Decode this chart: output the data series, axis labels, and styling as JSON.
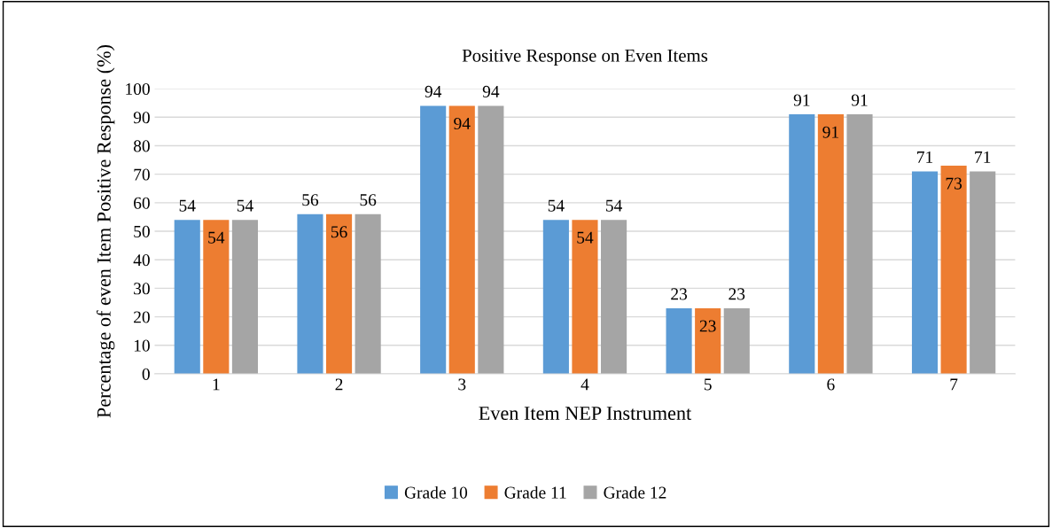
{
  "chart_data": {
    "type": "bar",
    "title": "Positive Response on Even Items",
    "xlabel": "Even Item NEP Instrument",
    "ylabel": "Percentage of even Item Positive Response (%)",
    "categories": [
      "1",
      "2",
      "3",
      "4",
      "5",
      "6",
      "7"
    ],
    "series": [
      {
        "name": "Grade 10",
        "color": "#5b9bd5",
        "values": [
          54,
          56,
          94,
          54,
          23,
          91,
          71
        ]
      },
      {
        "name": "Grade 11",
        "color": "#ed7d31",
        "values": [
          54,
          56,
          94,
          54,
          23,
          91,
          73
        ]
      },
      {
        "name": "Grade 12",
        "color": "#a5a5a5",
        "values": [
          54,
          56,
          94,
          54,
          23,
          91,
          71
        ]
      }
    ],
    "ylim": [
      0,
      100
    ],
    "yticks": [
      0,
      10,
      20,
      30,
      40,
      50,
      60,
      70,
      80,
      90,
      100
    ],
    "grid": "y",
    "legend": "bottom",
    "data_labels": true
  }
}
